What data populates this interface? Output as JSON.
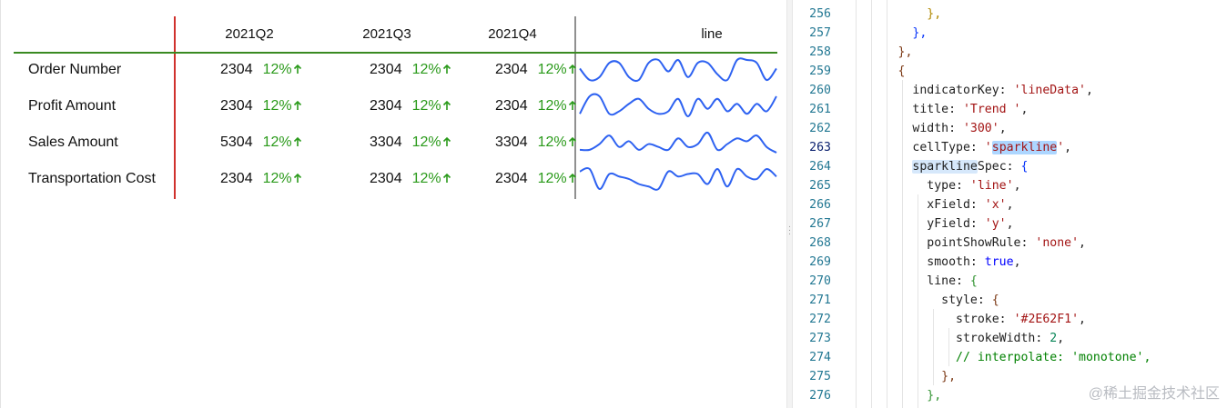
{
  "table": {
    "header": {
      "quarters": [
        "2021Q2",
        "2021Q3",
        "2021Q4"
      ],
      "trend": "line"
    },
    "rows": [
      {
        "label": "Order Number",
        "cells": [
          {
            "value": 2304,
            "change": "12%"
          },
          {
            "value": 2304,
            "change": "12%"
          },
          {
            "value": 2304,
            "change": "12%"
          }
        ],
        "trend": [
          6,
          2,
          3,
          8,
          8,
          3,
          2,
          8,
          9,
          5,
          9,
          3,
          8,
          8,
          4,
          2,
          9,
          9,
          8,
          2,
          6
        ]
      },
      {
        "label": "Profit Amount",
        "cells": [
          {
            "value": 2304,
            "change": "12%"
          },
          {
            "value": 2304,
            "change": "12%"
          },
          {
            "value": 2304,
            "change": "12%"
          }
        ],
        "trend": [
          2,
          9,
          9,
          2,
          3,
          6,
          8,
          4,
          2,
          3,
          8,
          1,
          8,
          4,
          8,
          3,
          6,
          2,
          6,
          3,
          9
        ]
      },
      {
        "label": "Sales Amount",
        "cells": [
          {
            "value": 5304,
            "change": "12%"
          },
          {
            "value": 3304,
            "change": "12%"
          },
          {
            "value": 3304,
            "change": "12%"
          }
        ],
        "trend": [
          3,
          3,
          5,
          8,
          4,
          6,
          3,
          5,
          4,
          3,
          7,
          4,
          5,
          9,
          3,
          5,
          7,
          6,
          8,
          4,
          2
        ]
      },
      {
        "label": "Transportation Cost",
        "cells": [
          {
            "value": 2304,
            "change": "12%"
          },
          {
            "value": 2304,
            "change": "12%"
          },
          {
            "value": 2304,
            "change": "12%"
          }
        ],
        "trend": [
          8,
          9,
          1,
          7,
          6,
          5,
          3,
          2,
          1,
          8,
          6,
          7,
          7,
          3,
          9,
          2,
          9,
          6,
          5,
          9,
          6
        ]
      }
    ],
    "trend_color": "#2e62f1",
    "header_line_color": "#3a8a22",
    "label_divider_color": "#d0312d"
  },
  "editor": {
    "current_line": 263,
    "lines": [
      {
        "number": 256,
        "tokens": [
          {
            "text": "            },",
            "color": "#b08800"
          }
        ]
      },
      {
        "number": 257,
        "tokens": [
          {
            "text": "          },",
            "color": "#0431fa"
          }
        ]
      },
      {
        "number": 258,
        "tokens": [
          {
            "text": "        },",
            "color": "#7b3814"
          }
        ]
      },
      {
        "number": 259,
        "tokens": [
          {
            "text": "        {",
            "color": "#7b3814"
          }
        ]
      },
      {
        "number": 260,
        "tokens": [
          {
            "text": "          indicatorKey: ",
            "color": "#1f1f1f"
          },
          {
            "text": "'lineData'",
            "color": "#a31515"
          },
          {
            "text": ",",
            "color": "#1f1f1f"
          }
        ]
      },
      {
        "number": 261,
        "tokens": [
          {
            "text": "          title: ",
            "color": "#1f1f1f"
          },
          {
            "text": "'Trend '",
            "color": "#a31515"
          },
          {
            "text": ",",
            "color": "#1f1f1f"
          }
        ]
      },
      {
        "number": 262,
        "tokens": [
          {
            "text": "          width: ",
            "color": "#1f1f1f"
          },
          {
            "text": "'300'",
            "color": "#a31515"
          },
          {
            "text": ",",
            "color": "#1f1f1f"
          }
        ]
      },
      {
        "number": 263,
        "tokens": [
          {
            "text": "          cellType: ",
            "color": "#1f1f1f"
          },
          {
            "text": "'",
            "color": "#a31515"
          },
          {
            "text": "sparkline",
            "color": "#a31515",
            "background": "#add6ff"
          },
          {
            "text": "'",
            "color": "#a31515"
          },
          {
            "text": ",",
            "color": "#1f1f1f"
          }
        ]
      },
      {
        "number": 264,
        "tokens": [
          {
            "text": "          ",
            "color": "#1f1f1f"
          },
          {
            "text": "sparkline",
            "color": "#1f1f1f",
            "background": "#d6e8fb"
          },
          {
            "text": "Spec: ",
            "color": "#1f1f1f"
          },
          {
            "text": "{",
            "color": "#0431fa"
          }
        ]
      },
      {
        "number": 265,
        "tokens": [
          {
            "text": "            type: ",
            "color": "#1f1f1f"
          },
          {
            "text": "'line'",
            "color": "#a31515"
          },
          {
            "text": ",",
            "color": "#1f1f1f"
          }
        ]
      },
      {
        "number": 266,
        "tokens": [
          {
            "text": "            xField: ",
            "color": "#1f1f1f"
          },
          {
            "text": "'x'",
            "color": "#a31515"
          },
          {
            "text": ",",
            "color": "#1f1f1f"
          }
        ]
      },
      {
        "number": 267,
        "tokens": [
          {
            "text": "            yField: ",
            "color": "#1f1f1f"
          },
          {
            "text": "'y'",
            "color": "#a31515"
          },
          {
            "text": ",",
            "color": "#1f1f1f"
          }
        ]
      },
      {
        "number": 268,
        "tokens": [
          {
            "text": "            pointShowRule: ",
            "color": "#1f1f1f"
          },
          {
            "text": "'none'",
            "color": "#a31515"
          },
          {
            "text": ",",
            "color": "#1f1f1f"
          }
        ]
      },
      {
        "number": 269,
        "tokens": [
          {
            "text": "            smooth: ",
            "color": "#1f1f1f"
          },
          {
            "text": "true",
            "color": "#0000ff"
          },
          {
            "text": ",",
            "color": "#1f1f1f"
          }
        ]
      },
      {
        "number": 270,
        "tokens": [
          {
            "text": "            line: ",
            "color": "#1f1f1f"
          },
          {
            "text": "{",
            "color": "#319331"
          }
        ]
      },
      {
        "number": 271,
        "tokens": [
          {
            "text": "              style: ",
            "color": "#1f1f1f"
          },
          {
            "text": "{",
            "color": "#7b3814"
          }
        ]
      },
      {
        "number": 272,
        "tokens": [
          {
            "text": "                stroke: ",
            "color": "#1f1f1f"
          },
          {
            "text": "'#2E62F1'",
            "color": "#a31515"
          },
          {
            "text": ",",
            "color": "#1f1f1f"
          }
        ]
      },
      {
        "number": 273,
        "tokens": [
          {
            "text": "                strokeWidth: ",
            "color": "#1f1f1f"
          },
          {
            "text": "2",
            "color": "#098658"
          },
          {
            "text": ",",
            "color": "#1f1f1f"
          }
        ]
      },
      {
        "number": 274,
        "tokens": [
          {
            "text": "                // interpolate: 'monotone',",
            "color": "#008000"
          }
        ]
      },
      {
        "number": 275,
        "tokens": [
          {
            "text": "              },",
            "color": "#7b3814"
          }
        ]
      },
      {
        "number": 276,
        "tokens": [
          {
            "text": "            },",
            "color": "#319331"
          }
        ]
      }
    ]
  },
  "watermark": "@稀土掘金技术社区"
}
